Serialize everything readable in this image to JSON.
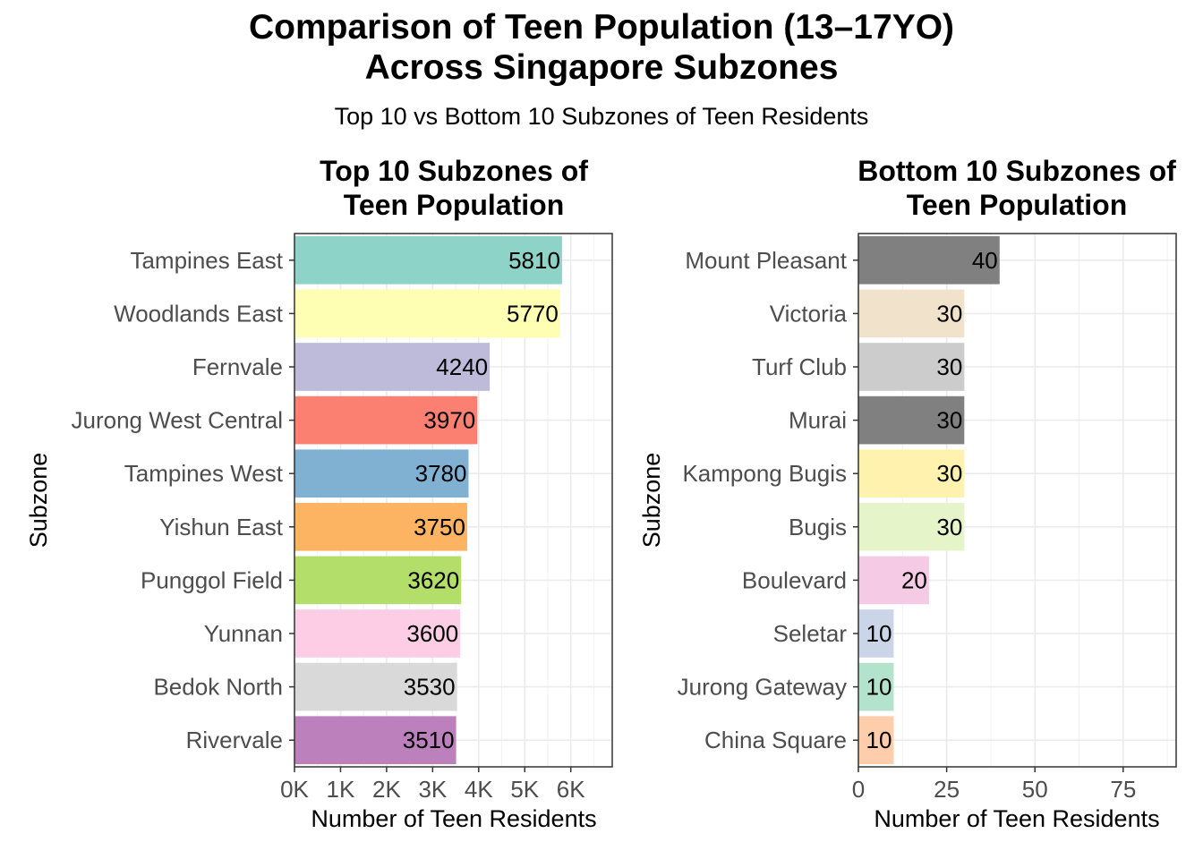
{
  "title": "Comparison of Teen Population (13–17YO)\nAcross Singapore Subzones",
  "subtitle": "Top 10 vs Bottom 10 Subzones of Teen Residents",
  "chart_data": [
    {
      "type": "bar",
      "orientation": "horizontal",
      "title": "Top 10 Subzones of\nTeen Population",
      "xlabel": "Number of Teen Residents",
      "ylabel": "Subzone",
      "xlim": [
        0,
        6900
      ],
      "xticks": [
        0,
        1000,
        2000,
        3000,
        4000,
        5000,
        6000
      ],
      "xtick_labels": [
        "0K",
        "1K",
        "2K",
        "3K",
        "4K",
        "5K",
        "6K"
      ],
      "grid": true,
      "categories": [
        "Tampines East",
        "Woodlands East",
        "Fernvale",
        "Jurong West Central",
        "Tampines West",
        "Yishun East",
        "Punggol Field",
        "Yunnan",
        "Bedok North",
        "Rivervale"
      ],
      "values": [
        5810,
        5770,
        4240,
        3970,
        3780,
        3750,
        3620,
        3600,
        3530,
        3510
      ],
      "colors": [
        "#8DD3C7",
        "#FFFFB3",
        "#BEBADA",
        "#FB8072",
        "#80B1D3",
        "#FDB462",
        "#B3DE69",
        "#FCCDE5",
        "#D9D9D9",
        "#BC80BD"
      ]
    },
    {
      "type": "bar",
      "orientation": "horizontal",
      "title": "Bottom 10 Subzones of\nTeen Population",
      "xlabel": "Number of Teen Residents",
      "ylabel": "Subzone",
      "xlim": [
        0,
        90
      ],
      "xticks": [
        0,
        25,
        50,
        75
      ],
      "xtick_labels": [
        "0",
        "25",
        "50",
        "75"
      ],
      "grid": true,
      "categories": [
        "Mount Pleasant",
        "Victoria",
        "Turf Club",
        "Murai",
        "Kampong Bugis",
        "Bugis",
        "Boulevard",
        "Seletar",
        "Jurong Gateway",
        "China Square"
      ],
      "values": [
        40,
        30,
        30,
        30,
        30,
        30,
        20,
        10,
        10,
        10
      ],
      "colors": [
        "#808080",
        "#F1E2CC",
        "#CCCCCC",
        "#808080",
        "#FFF2AE",
        "#E6F5C9",
        "#F4CAE4",
        "#CBD5E8",
        "#B3E2CD",
        "#FDCDAC"
      ]
    }
  ]
}
